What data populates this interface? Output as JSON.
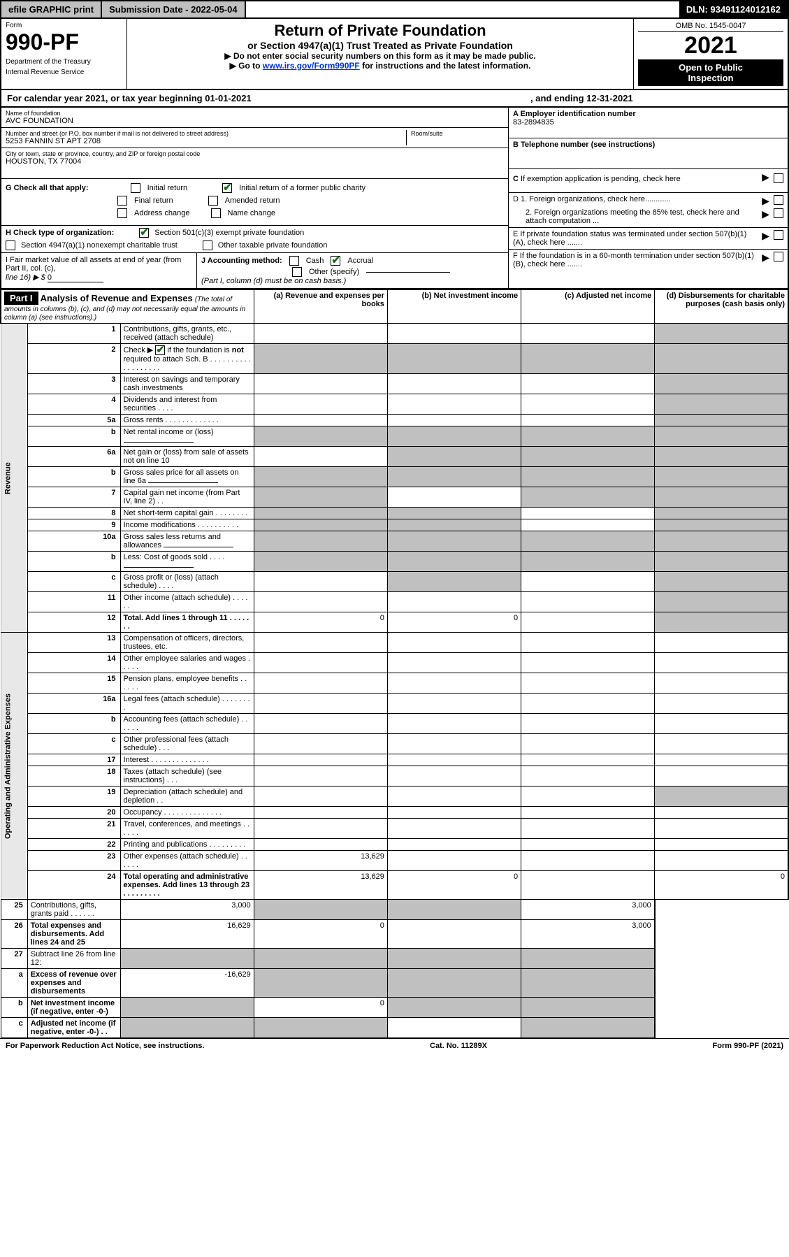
{
  "topbar": {
    "efile": "efile GRAPHIC print",
    "submission_label": "Submission Date - 2022-05-04",
    "dln": "DLN: 93491124012162"
  },
  "header": {
    "form_label": "Form",
    "form_number": "990-PF",
    "dept1": "Department of the Treasury",
    "dept2": "Internal Revenue Service",
    "title": "Return of Private Foundation",
    "subtitle": "or Section 4947(a)(1) Trust Treated as Private Foundation",
    "note1": "▶ Do not enter social security numbers on this form as it may be made public.",
    "note2_pre": "▶ Go to ",
    "note2_link": "www.irs.gov/Form990PF",
    "note2_post": " for instructions and the latest information.",
    "omb": "OMB No. 1545-0047",
    "year": "2021",
    "inspect1": "Open to Public",
    "inspect2": "Inspection"
  },
  "calendar": {
    "left": "For calendar year 2021, or tax year beginning 01-01-2021",
    "right": ", and ending 12-31-2021"
  },
  "nameblock": {
    "name_label": "Name of foundation",
    "name": "AVC FOUNDATION",
    "addr_label": "Number and street (or P.O. box number if mail is not delivered to street address)",
    "addr": "5253 FANNIN ST APT 2708",
    "room_label": "Room/suite",
    "city_label": "City or town, state or province, country, and ZIP or foreign postal code",
    "city": "HOUSTON, TX  77004"
  },
  "rightblock": {
    "a_label": "A Employer identification number",
    "a_val": "83-2894835",
    "b_label": "B Telephone number (see instructions)",
    "c_label": "C If exemption application is pending, check here",
    "d1_label": "D 1. Foreign organizations, check here............",
    "d2_label": "2. Foreign organizations meeting the 85% test, check here and attach computation ...",
    "e_label": "E  If private foundation status was terminated under section 507(b)(1)(A), check here .......",
    "f_label": "F  If the foundation is in a 60-month termination under section 507(b)(1)(B), check here .......",
    "g_label": "G Check all that apply:",
    "g_opts": [
      "Initial return",
      "Initial return of a former public charity",
      "Final return",
      "Amended return",
      "Address change",
      "Name change"
    ],
    "h_label": "H Check type of organization:",
    "h_opts": [
      "Section 501(c)(3) exempt private foundation",
      "Section 4947(a)(1) nonexempt charitable trust",
      "Other taxable private foundation"
    ],
    "i_label": "I Fair market value of all assets at end of year (from Part II, col. (c),",
    "i_line": "line 16) ▶ $",
    "i_val": "0",
    "j_label": "J Accounting method:",
    "j_opts": [
      "Cash",
      "Accrual",
      "Other (specify)"
    ],
    "j_note": "(Part I, column (d) must be on cash basis.)"
  },
  "part1": {
    "header": "Part I",
    "title": "Analysis of Revenue and Expenses",
    "title_note": "(The total of amounts in columns (b), (c), and (d) may not necessarily equal the amounts in column (a) (see instructions).)",
    "cols": {
      "a": "(a)  Revenue and expenses per books",
      "b": "(b)  Net investment income",
      "c": "(c)  Adjusted net income",
      "d": "(d)  Disbursements for charitable purposes (cash basis only)"
    }
  },
  "sections": {
    "revenue": "Revenue",
    "opadmin": "Operating and Administrative Expenses"
  },
  "rows": [
    {
      "n": "1",
      "d": "Contributions, gifts, grants, etc., received (attach schedule)",
      "grey": [
        "d"
      ]
    },
    {
      "n": "2",
      "d": "Check ▶ ☑ if the foundation is not required to attach Sch. B   .  .  .  .  .  .  .  .  .  .  .  .  .  .  .  .  .  .  .",
      "grey": [
        "a",
        "b",
        "c",
        "d"
      ],
      "checked": true
    },
    {
      "n": "3",
      "d": "Interest on savings and temporary cash investments",
      "grey": [
        "d"
      ]
    },
    {
      "n": "4",
      "d": "Dividends and interest from securities   .  .  .  .",
      "grey": [
        "d"
      ]
    },
    {
      "n": "5a",
      "d": "Gross rents   .  .  .  .  .  .  .  .  .  .  .  .  .",
      "grey": [
        "d"
      ]
    },
    {
      "n": "b",
      "d": "Net rental income or (loss)",
      "grey": [
        "a",
        "b",
        "c",
        "d"
      ],
      "inline": true
    },
    {
      "n": "6a",
      "d": "Net gain or (loss) from sale of assets not on line 10",
      "grey": [
        "b",
        "c",
        "d"
      ]
    },
    {
      "n": "b",
      "d": "Gross sales price for all assets on line 6a",
      "grey": [
        "a",
        "b",
        "c",
        "d"
      ],
      "inline": true
    },
    {
      "n": "7",
      "d": "Capital gain net income (from Part IV, line 2)  .  .",
      "grey": [
        "a",
        "c",
        "d"
      ]
    },
    {
      "n": "8",
      "d": "Net short-term capital gain  .  .  .  .  .  .  .  .",
      "grey": [
        "a",
        "b",
        "d"
      ]
    },
    {
      "n": "9",
      "d": "Income modifications  .  .  .  .  .  .  .  .  .  .",
      "grey": [
        "a",
        "b",
        "d"
      ]
    },
    {
      "n": "10a",
      "d": "Gross sales less returns and allowances",
      "grey": [
        "a",
        "b",
        "c",
        "d"
      ],
      "inline": true
    },
    {
      "n": "b",
      "d": "Less: Cost of goods sold   .  .  .  .",
      "grey": [
        "a",
        "b",
        "c",
        "d"
      ],
      "inline": true
    },
    {
      "n": "c",
      "d": "Gross profit or (loss) (attach schedule)   .  .  .  .",
      "grey": [
        "b",
        "d"
      ]
    },
    {
      "n": "11",
      "d": "Other income (attach schedule)   .  .  .  .  .  .",
      "grey": [
        "d"
      ]
    },
    {
      "n": "12",
      "d": "Total. Add lines 1 through 11   .  .  .  .  .  .  .",
      "bold": true,
      "a": "0",
      "b": "0",
      "grey": [
        "d"
      ]
    },
    {
      "n": "13",
      "d": "Compensation of officers, directors, trustees, etc."
    },
    {
      "n": "14",
      "d": "Other employee salaries and wages   .  .  .  .  ."
    },
    {
      "n": "15",
      "d": "Pension plans, employee benefits   .  .  .  .  .  ."
    },
    {
      "n": "16a",
      "d": "Legal fees (attach schedule)  .  .  .  .  .  .  .  ."
    },
    {
      "n": "b",
      "d": "Accounting fees (attach schedule)  .  .  .  .  .  ."
    },
    {
      "n": "c",
      "d": "Other professional fees (attach schedule)   .  .  ."
    },
    {
      "n": "17",
      "d": "Interest   .  .  .  .  .  .  .  .  .  .  .  .  .  ."
    },
    {
      "n": "18",
      "d": "Taxes (attach schedule) (see instructions)   .  .  ."
    },
    {
      "n": "19",
      "d": "Depreciation (attach schedule) and depletion   .  .",
      "grey": [
        "d"
      ]
    },
    {
      "n": "20",
      "d": "Occupancy  .  .  .  .  .  .  .  .  .  .  .  .  .  ."
    },
    {
      "n": "21",
      "d": "Travel, conferences, and meetings  .  .  .  .  .  ."
    },
    {
      "n": "22",
      "d": "Printing and publications  .  .  .  .  .  .  .  .  ."
    },
    {
      "n": "23",
      "d": "Other expenses (attach schedule)   .  .  .  .  .  .",
      "a": "13,629"
    },
    {
      "n": "24",
      "d": "Total operating and administrative expenses. Add lines 13 through 23   .  .  .  .  .  .  .  .  .",
      "bold": true,
      "a": "13,629",
      "b": "0",
      "dd": "0"
    },
    {
      "n": "25",
      "d": "Contributions, gifts, grants paid   .  .  .  .  .  .",
      "a": "3,000",
      "dd": "3,000",
      "grey": [
        "b",
        "c"
      ]
    },
    {
      "n": "26",
      "d": "Total expenses and disbursements. Add lines 24 and 25",
      "bold": true,
      "a": "16,629",
      "b": "0",
      "dd": "3,000"
    },
    {
      "n": "27",
      "d": "Subtract line 26 from line 12:",
      "grey": [
        "a",
        "b",
        "c",
        "d"
      ]
    },
    {
      "n": "a",
      "d": "Excess of revenue over expenses and disbursements",
      "bold": true,
      "a": "-16,629",
      "grey": [
        "b",
        "c",
        "d"
      ]
    },
    {
      "n": "b",
      "d": "Net investment income (if negative, enter -0-)",
      "bold": true,
      "b": "0",
      "grey": [
        "a",
        "c",
        "d"
      ]
    },
    {
      "n": "c",
      "d": "Adjusted net income (if negative, enter -0-)  .  .",
      "bold": true,
      "grey": [
        "a",
        "b",
        "d"
      ]
    }
  ],
  "footer": {
    "left": "For Paperwork Reduction Act Notice, see instructions.",
    "mid": "Cat. No. 11289X",
    "right": "Form 990-PF (2021)"
  }
}
